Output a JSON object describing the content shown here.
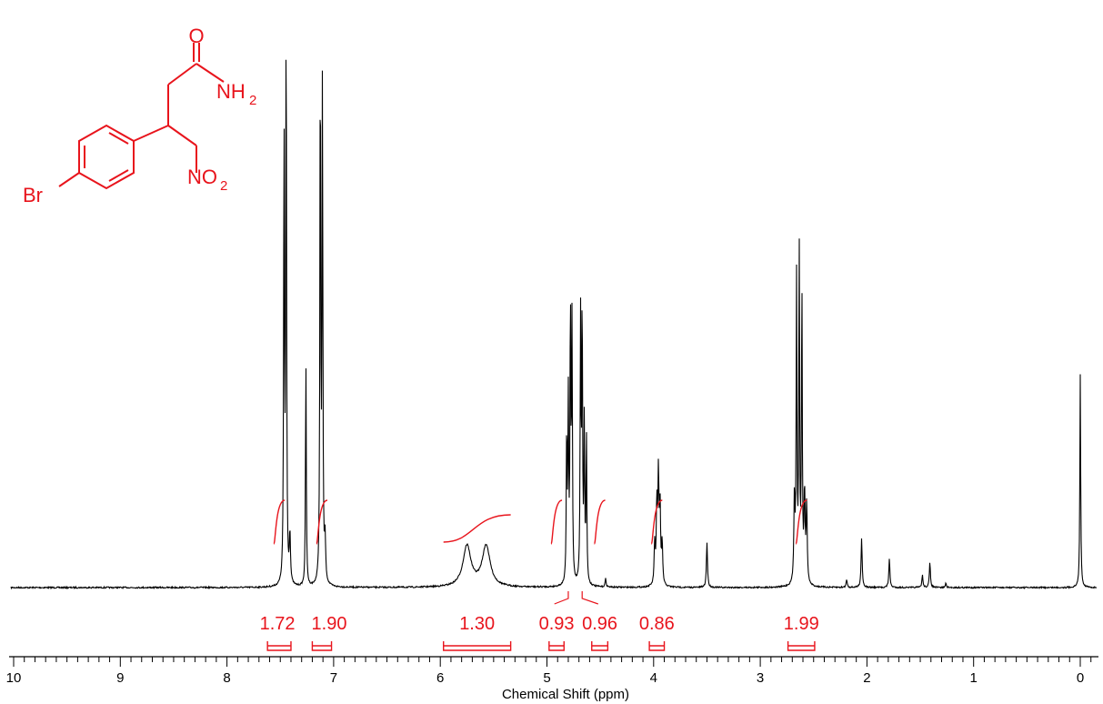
{
  "chart_data": {
    "type": "line",
    "title": "",
    "xlabel": "Chemical Shift (ppm)",
    "ylabel": "",
    "xlim": [
      10.2,
      -0.3
    ],
    "x_reversed": true,
    "x_ticks": [
      "10",
      "9",
      "8",
      "7",
      "6",
      "5",
      "4",
      "3",
      "2",
      "1",
      "0"
    ],
    "grid": false,
    "colors": {
      "spectrum": "#000000",
      "annotation": "#e8141c",
      "axis": "#000000"
    },
    "peaks": [
      {
        "ppm": 7.465,
        "height": 1.12
      },
      {
        "ppm": 7.445,
        "height": 1.4
      },
      {
        "ppm": 7.41,
        "height": 0.12
      },
      {
        "ppm": 7.26,
        "height": 0.55
      },
      {
        "ppm": 7.125,
        "height": 1.31
      },
      {
        "ppm": 7.105,
        "height": 1.22
      },
      {
        "ppm": 7.08,
        "height": 0.1
      },
      {
        "ppm": 5.75,
        "height": 0.1
      },
      {
        "ppm": 5.57,
        "height": 0.1
      },
      {
        "ppm": 4.815,
        "height": 0.37
      },
      {
        "ppm": 4.8,
        "height": 0.44
      },
      {
        "ppm": 4.78,
        "height": 0.68
      },
      {
        "ppm": 4.765,
        "height": 0.63
      },
      {
        "ppm": 4.685,
        "height": 0.64
      },
      {
        "ppm": 4.67,
        "height": 0.68
      },
      {
        "ppm": 4.65,
        "height": 0.38
      },
      {
        "ppm": 4.63,
        "height": 0.36
      },
      {
        "ppm": 4.45,
        "height": 0.02
      },
      {
        "ppm": 3.99,
        "height": 0.1
      },
      {
        "ppm": 3.97,
        "height": 0.19
      },
      {
        "ppm": 3.955,
        "height": 0.26
      },
      {
        "ppm": 3.94,
        "height": 0.19
      },
      {
        "ppm": 3.92,
        "height": 0.1
      },
      {
        "ppm": 3.5,
        "height": 0.11
      },
      {
        "ppm": 2.68,
        "height": 0.21
      },
      {
        "ppm": 2.66,
        "height": 0.74
      },
      {
        "ppm": 2.635,
        "height": 0.82
      },
      {
        "ppm": 2.61,
        "height": 0.73
      },
      {
        "ppm": 2.585,
        "height": 0.22
      },
      {
        "ppm": 2.565,
        "height": 0.19
      },
      {
        "ppm": 2.19,
        "height": 0.02
      },
      {
        "ppm": 2.05,
        "height": 0.12
      },
      {
        "ppm": 1.79,
        "height": 0.07
      },
      {
        "ppm": 1.48,
        "height": 0.03
      },
      {
        "ppm": 1.41,
        "height": 0.06
      },
      {
        "ppm": 1.26,
        "height": 0.01
      },
      {
        "ppm": 0.0,
        "height": 0.52
      }
    ],
    "integrals": [
      {
        "label": "1.72",
        "from": 7.62,
        "to": 7.4,
        "value": 1.72
      },
      {
        "label": "1.90",
        "from": 7.2,
        "to": 7.02,
        "value": 1.9
      },
      {
        "label": "1.30",
        "from": 5.97,
        "to": 5.34,
        "value": 1.3
      },
      {
        "label": "0.93",
        "from": 4.98,
        "to": 4.84,
        "value": 0.93
      },
      {
        "label": "0.96",
        "from": 4.58,
        "to": 4.43,
        "value": 0.96
      },
      {
        "label": "0.86",
        "from": 4.04,
        "to": 3.9,
        "value": 0.86
      },
      {
        "label": "1.99",
        "from": 2.74,
        "to": 2.49,
        "value": 1.99
      }
    ]
  },
  "structure": {
    "labels": {
      "carbonyl_o": "O",
      "amide_n": "NH",
      "amide_sub": "2",
      "nitro_n": "NO",
      "nitro_sub": "2",
      "bromo": "Br"
    }
  }
}
